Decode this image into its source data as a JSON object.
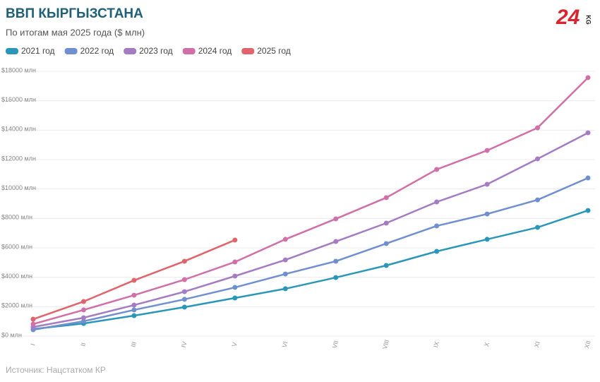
{
  "chart_data": {
    "type": "line",
    "title": "ВВП КЫРГЫЗСТАНА",
    "subtitle": "По итогам мая 2025 года ($ млн)",
    "source": "Источник: Нацстатком КР",
    "logo": {
      "number": "24",
      "suffix": "KG"
    },
    "categories": [
      "I",
      "II",
      "III",
      "IV",
      "V",
      "VI",
      "VII",
      "VIII",
      "IX",
      "X",
      "XI",
      "XII"
    ],
    "series": [
      {
        "name": "2021 год",
        "color": "#2a97b8",
        "values": [
          480,
          860,
          1390,
          1970,
          2590,
          3220,
          3980,
          4800,
          5760,
          6580,
          7390,
          8540
        ]
      },
      {
        "name": "2022 год",
        "color": "#6f8fcf",
        "values": [
          430,
          1010,
          1780,
          2500,
          3310,
          4220,
          5090,
          6290,
          7490,
          8300,
          9260,
          10750
        ]
      },
      {
        "name": "2023 год",
        "color": "#a57cc4",
        "values": [
          620,
          1250,
          2110,
          3020,
          4080,
          5180,
          6430,
          7680,
          9120,
          10320,
          12050,
          13820
        ]
      },
      {
        "name": "2024 год",
        "color": "#d06fa8",
        "values": [
          820,
          1780,
          2780,
          3840,
          5040,
          6580,
          7970,
          9410,
          11330,
          12620,
          14160,
          17570
        ]
      },
      {
        "name": "2025 год",
        "color": "#e0646b",
        "values": [
          1150,
          2350,
          3790,
          5090,
          6530,
          null,
          null,
          null,
          null,
          null,
          null,
          null
        ]
      }
    ],
    "ylim": [
      0,
      18000
    ],
    "yticks": [
      {
        "value": 0,
        "label": "$0 млн"
      },
      {
        "value": 2000,
        "label": "$2000 млн"
      },
      {
        "value": 4000,
        "label": "$4000 млн"
      },
      {
        "value": 6000,
        "label": "$6000 млн"
      },
      {
        "value": 8000,
        "label": "$8000 млн"
      },
      {
        "value": 10000,
        "label": "$10000 млн"
      },
      {
        "value": 12000,
        "label": "$12000 млн"
      },
      {
        "value": 14000,
        "label": "$14000 млн"
      },
      {
        "value": 16000,
        "label": "$16000 млн"
      },
      {
        "value": 18000,
        "label": "$18000 млн"
      }
    ],
    "grid": true,
    "legend": "top-left"
  }
}
